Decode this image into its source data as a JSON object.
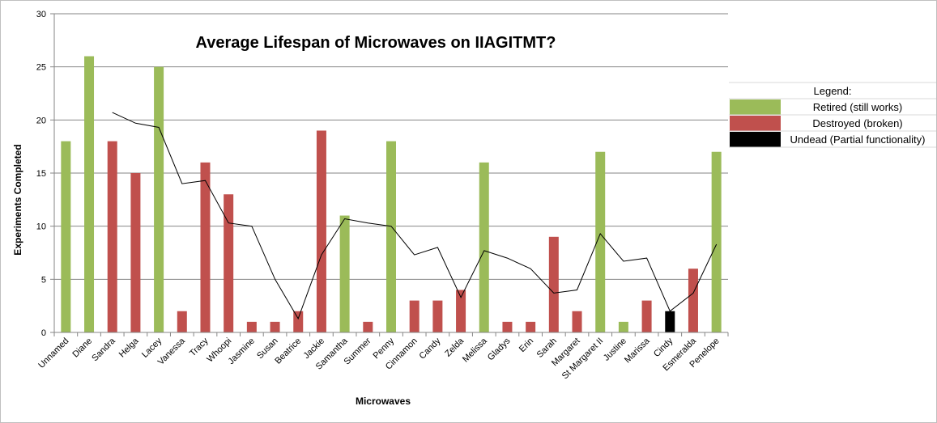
{
  "chart_data": {
    "type": "bar",
    "title": "Average Lifespan of Microwaves on IIAGITMT?",
    "xlabel": "Microwaves",
    "ylabel": "Experiments Completed",
    "ylim": [
      0,
      30
    ],
    "yticks": [
      0,
      5,
      10,
      15,
      20,
      25,
      30
    ],
    "grid": true,
    "categories": [
      "Unnamed",
      "Diane",
      "Sandra",
      "Helga",
      "Lacey",
      "Vanessa",
      "Tracy",
      "Whoopi",
      "Jasmine",
      "Susan",
      "Beatrice",
      "Jackie",
      "Samantha",
      "Summer",
      "Penny",
      "Cinnamon",
      "Candy",
      "Zelda",
      "Melissa",
      "Gladys",
      "Erin",
      "Sarah",
      "Margaret",
      "St Margaret II",
      "Justine",
      "Marissa",
      "Cindy",
      "Esmeralda",
      "Penelope"
    ],
    "values": [
      18,
      26,
      18,
      15,
      25,
      2,
      16,
      13,
      1,
      1,
      2,
      19,
      11,
      1,
      18,
      3,
      3,
      4,
      16,
      1,
      1,
      9,
      2,
      17,
      1,
      3,
      2,
      6,
      17
    ],
    "status": [
      "retired",
      "retired",
      "destroyed",
      "destroyed",
      "retired",
      "destroyed",
      "destroyed",
      "destroyed",
      "destroyed",
      "destroyed",
      "destroyed",
      "destroyed",
      "retired",
      "destroyed",
      "retired",
      "destroyed",
      "destroyed",
      "destroyed",
      "retired",
      "destroyed",
      "destroyed",
      "destroyed",
      "destroyed",
      "retired",
      "retired",
      "destroyed",
      "undead",
      "destroyed",
      "retired"
    ],
    "trendline": {
      "type": "moving-average",
      "start_index": 2,
      "values": [
        20.7,
        19.7,
        19.3,
        14.0,
        14.3,
        10.3,
        10.0,
        5.0,
        1.3,
        7.3,
        10.7,
        10.3,
        10.0,
        7.3,
        8.0,
        3.3,
        7.7,
        7.0,
        6.0,
        3.7,
        4.0,
        9.3,
        6.7,
        7.0,
        2.0,
        3.7,
        8.3
      ]
    },
    "legend": {
      "title": "Legend:",
      "position": "right",
      "items": [
        {
          "key": "retired",
          "label": "Retired (still works)",
          "color": "#9BBB59"
        },
        {
          "key": "destroyed",
          "label": "Destroyed (broken)",
          "color": "#C0504D"
        },
        {
          "key": "undead",
          "label": "Undead (Partial functionality)",
          "color": "#000000"
        }
      ]
    }
  }
}
